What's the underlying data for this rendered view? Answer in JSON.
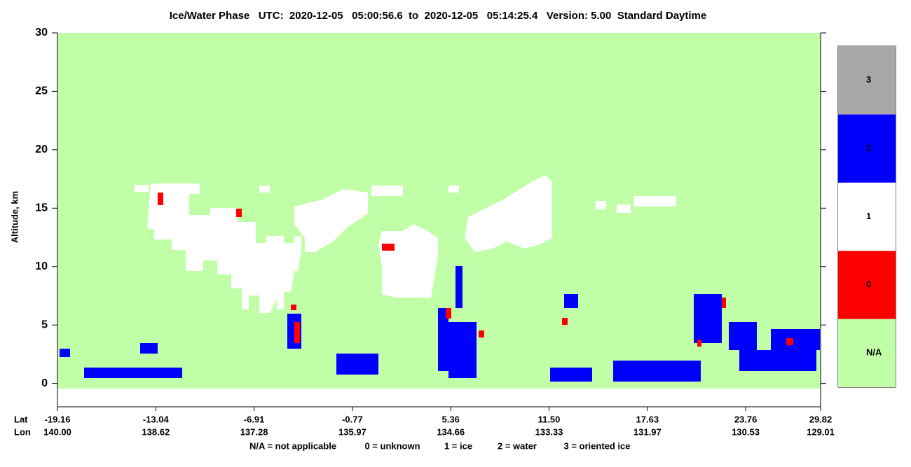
{
  "chart_data": {
    "type": "heatmap",
    "title": "Ice/Water Phase   UTC:  2020-12-05   05:00:56.6  to  2020-12-05   05:14:25.4   Version: 5.00  Standard Daytime",
    "ylabel": "Altitude, km",
    "ylim": [
      -2,
      30
    ],
    "yticks": [
      0,
      5,
      10,
      15,
      20,
      25,
      30
    ],
    "x_row_labels": [
      "Lat",
      "Lon"
    ],
    "lat_ticks": [
      -19.16,
      -13.04,
      -6.91,
      -0.77,
      5.36,
      {
        "value": 11.5,
        "label": "11.50"
      },
      17.63,
      23.76,
      29.82
    ],
    "lon_ticks": [
      {
        "value": 140,
        "label": "140.00"
      },
      138.62,
      137.28,
      135.97,
      134.66,
      133.33,
      131.97,
      130.53,
      129.01
    ],
    "colorbar": {
      "labels": [
        "N/A",
        0,
        1,
        2,
        3
      ],
      "colors": [
        "#c0ffa8",
        "#ff0000",
        "#ffffff",
        "#0000ff",
        "#a8a8a8"
      ]
    },
    "legend_text": [
      "N/A = not applicable",
      "0 = unknown",
      "1 = ice",
      "2 = water",
      "3 = oriented ice"
    ]
  }
}
